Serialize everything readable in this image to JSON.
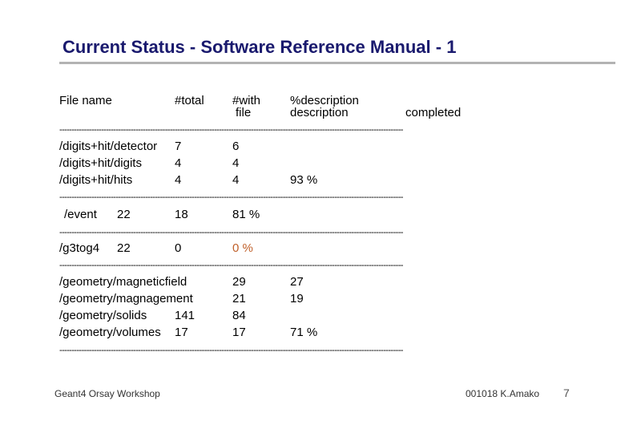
{
  "title": "Current Status - Software Reference Manual - 1",
  "header": {
    "file_name": "File name",
    "total": "#total",
    "with_line1": "#with",
    "with_line2": "file",
    "desc_line1": "%description",
    "desc_line2": "description",
    "completed": "completed"
  },
  "dashes": "--------------------------------------------------------------------------------------------------------------------------------------------",
  "rows": {
    "detector": {
      "name": "/digits+hit/detector",
      "total": "7",
      "with": "6"
    },
    "digits": {
      "name": "/digits+hit/digits",
      "total": "4",
      "with": "4"
    },
    "hits": {
      "name": "/digits+hit/hits",
      "total": "4",
      "with": "4",
      "pct": "93 %"
    },
    "event": {
      "name": "/event",
      "total": "22",
      "with": "18",
      "pct": "81 %"
    },
    "g3tog4": {
      "name": "/g3tog4",
      "total": "22",
      "with": "0",
      "pct": "0 %"
    },
    "magneticfield": {
      "name": "/geometry/magneticfield",
      "with": "29",
      "desc": "27"
    },
    "magnagement": {
      "name": "/geometry/magnagement",
      "with": "21",
      "desc": "19"
    },
    "solids": {
      "name": "/geometry/solids",
      "total": "141",
      "with": "84"
    },
    "volumes": {
      "name": "/geometry/volumes",
      "total": "17",
      "with": "17",
      "pct": "71 %"
    }
  },
  "footer": {
    "left": "Geant4 Orsay Workshop",
    "right": "001018 K.Amako",
    "page": "7"
  }
}
